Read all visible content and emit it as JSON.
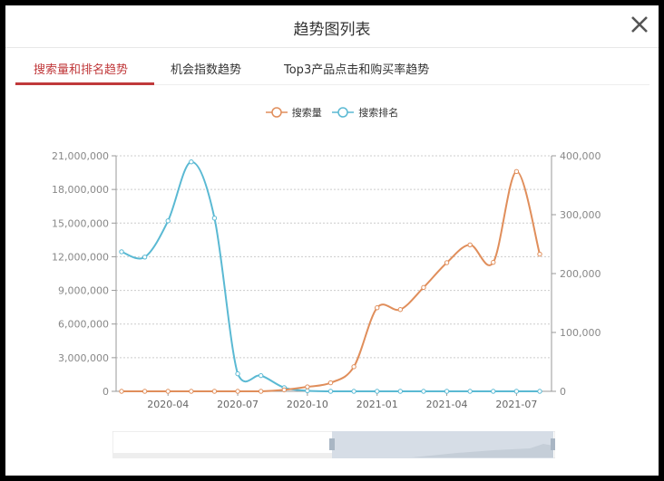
{
  "window": {
    "title": "趋势图列表",
    "close_icon": "close-x-icon"
  },
  "tabs": [
    {
      "label": "搜索量和排名趋势",
      "active": true
    },
    {
      "label": "机会指数趋势",
      "active": false
    },
    {
      "label": "Top3产品点击和购买率趋势",
      "active": false
    }
  ],
  "colors": {
    "accent": "#c0393b",
    "search_volume": "#e08e5b",
    "search_rank": "#5ab9d3"
  },
  "chart_data": {
    "type": "line",
    "smooth": true,
    "legend_position": "top",
    "grid": "horizontal dashed",
    "x": [
      "2020-02",
      "2020-03",
      "2020-04",
      "2020-05",
      "2020-06",
      "2020-07",
      "2020-08",
      "2020-09",
      "2020-10",
      "2020-11",
      "2020-12",
      "2021-01",
      "2021-02",
      "2021-03",
      "2021-04",
      "2021-05",
      "2021-06",
      "2021-07",
      "2021-08"
    ],
    "x_tick_labels": [
      "2020-04",
      "2020-07",
      "2020-10",
      "2021-01",
      "2021-04",
      "2021-07"
    ],
    "y_left": {
      "range": [
        0,
        21000000
      ],
      "tick_labels": [
        "0",
        "3,000,000",
        "6,000,000",
        "9,000,000",
        "12,000,000",
        "15,000,000",
        "18,000,000",
        "21,000,000"
      ]
    },
    "y_right": {
      "range": [
        0,
        400000
      ],
      "tick_labels": [
        "0",
        "100,000",
        "200,000",
        "300,000",
        "400,000"
      ]
    },
    "series": [
      {
        "name": "搜索量",
        "axis": "left",
        "values": [
          0,
          0,
          0,
          0,
          0,
          0,
          0,
          130000,
          400000,
          760000,
          2190000,
          7450000,
          7290000,
          9260000,
          11470000,
          13060000,
          11500000,
          19600000,
          12230000
        ]
      },
      {
        "name": "搜索排名",
        "axis": "right",
        "values": [
          237000,
          228000,
          289500,
          389700,
          294100,
          29800,
          26700,
          6200,
          1000,
          0,
          0,
          0,
          0,
          0,
          0,
          0,
          0,
          0,
          0
        ]
      }
    ]
  }
}
